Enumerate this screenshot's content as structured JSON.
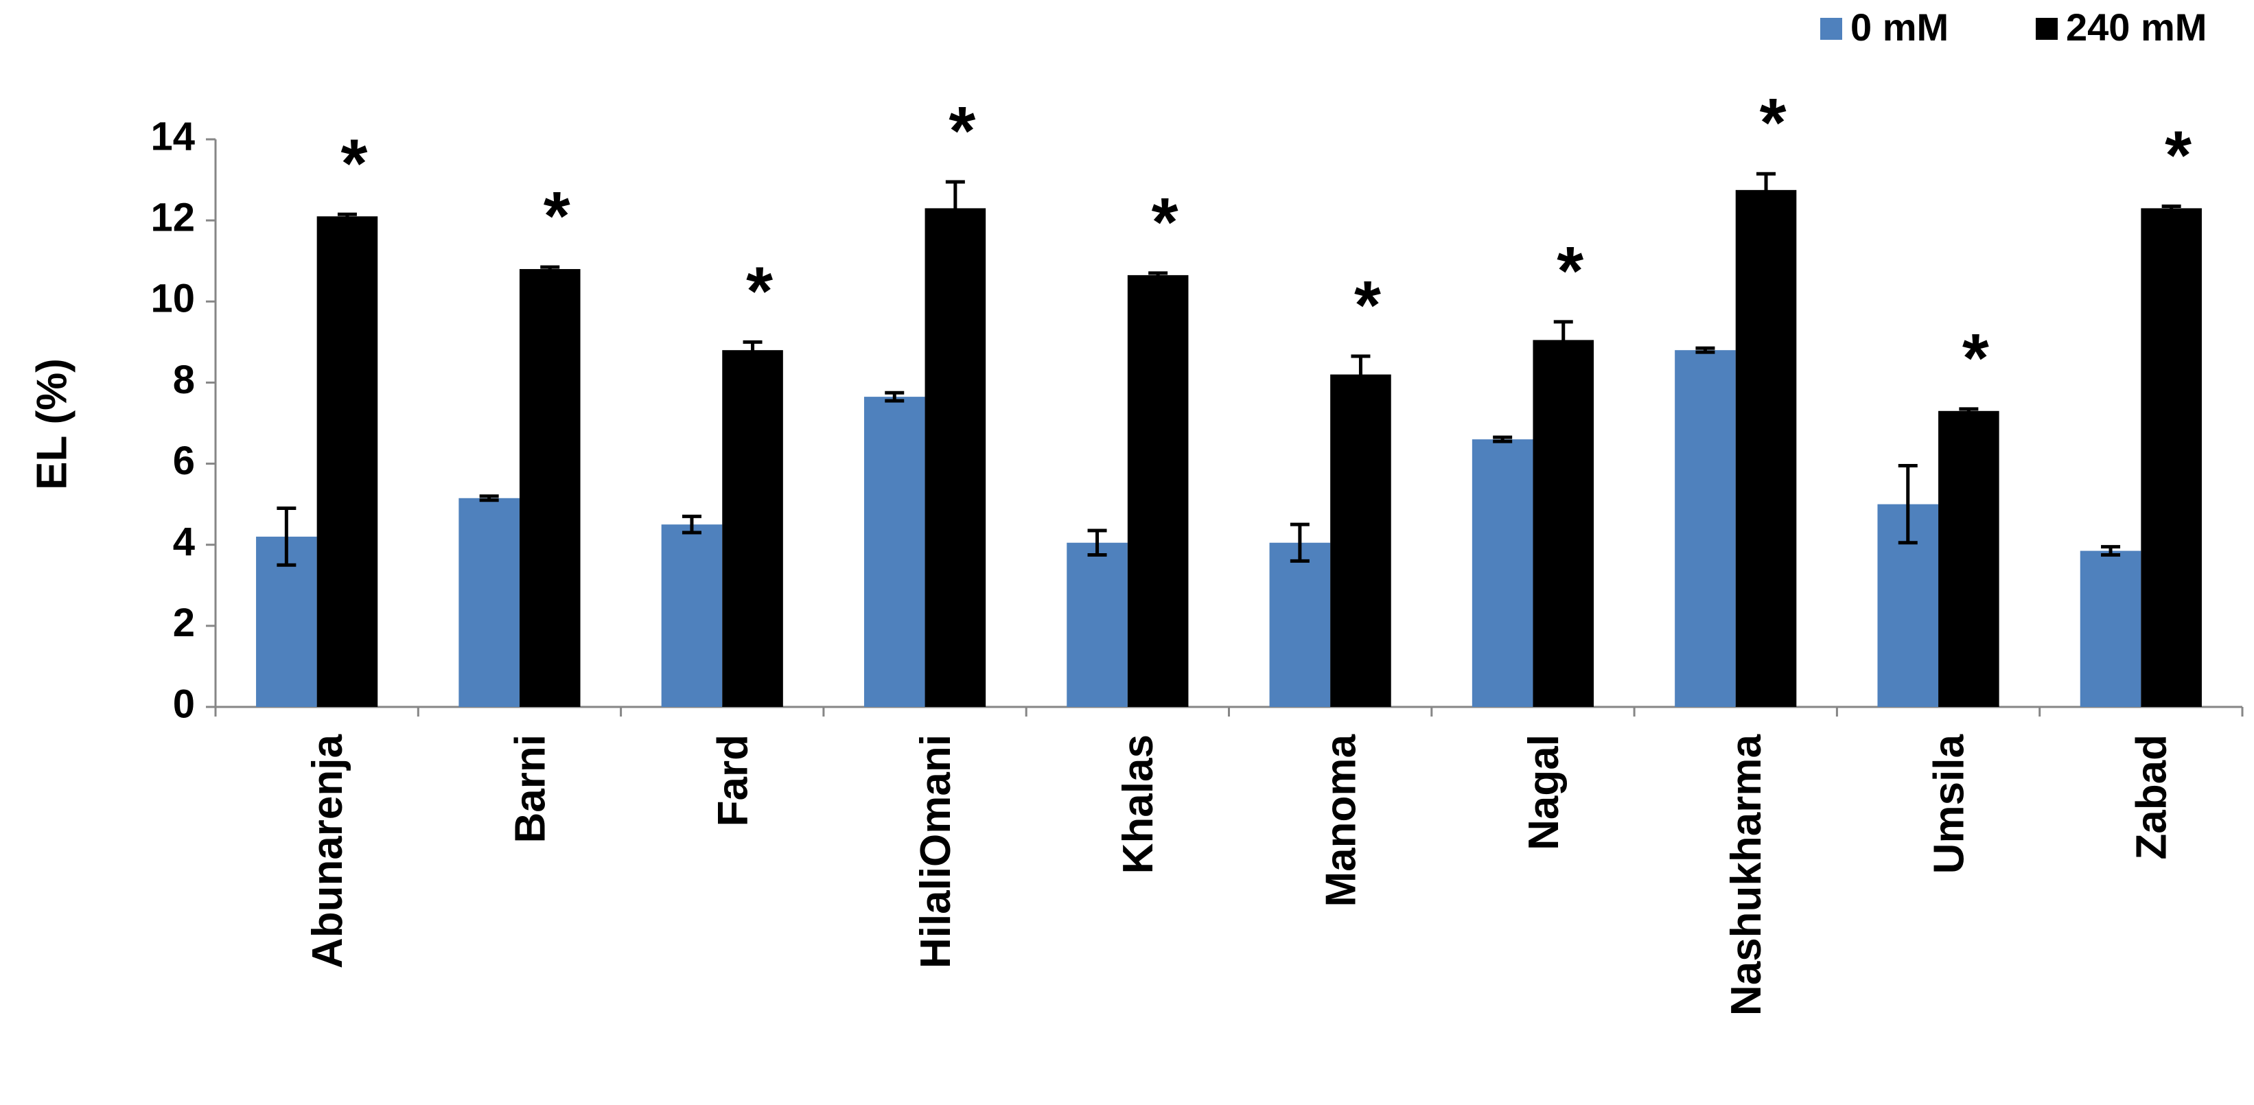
{
  "chart_data": {
    "type": "bar",
    "y_label": "EL  (%)",
    "categories": [
      "Abunarenja",
      "Barni",
      "Fard",
      "HilaliOmani",
      "Khalas",
      "Manoma",
      "Nagal",
      "Nashukharma",
      "Umsila",
      "Zabad"
    ],
    "series": [
      {
        "name": "0 mM",
        "color": "#4f81bd",
        "values": [
          4.2,
          5.15,
          4.5,
          7.65,
          4.05,
          4.05,
          6.6,
          8.8,
          5.0,
          3.85
        ],
        "errors": [
          0.7,
          0.05,
          0.2,
          0.1,
          0.3,
          0.45,
          0.05,
          0.05,
          0.95,
          0.1
        ]
      },
      {
        "name": "240 mM",
        "color": "#000000",
        "values": [
          12.1,
          10.8,
          8.8,
          12.3,
          10.65,
          8.2,
          9.05,
          12.75,
          7.3,
          12.3
        ],
        "errors": [
          0.05,
          0.05,
          0.2,
          0.65,
          0.05,
          0.45,
          0.45,
          0.4,
          0.05,
          0.05
        ],
        "annotations": [
          "*",
          "*",
          "*",
          "*",
          "*",
          "*",
          "*",
          "*",
          "*",
          "*"
        ]
      }
    ],
    "ylim": [
      0,
      14
    ],
    "yticks": [
      0,
      2,
      4,
      6,
      8,
      10,
      12,
      14
    ],
    "grid": false,
    "legend": "top-right"
  }
}
